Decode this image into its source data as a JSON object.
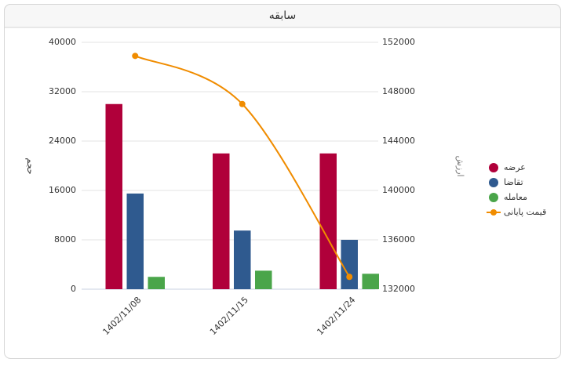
{
  "header": {
    "title": "سابقه"
  },
  "chart_data": {
    "type": "bar",
    "categories": [
      "1402/11/08",
      "1402/11/15",
      "1402/11/24"
    ],
    "y_label": "حجم",
    "y2_label": "ارزش",
    "ylim": [
      0,
      40000
    ],
    "yticks": [
      0,
      8000,
      16000,
      24000,
      32000,
      40000
    ],
    "y2lim": [
      132000,
      152000
    ],
    "y2ticks": [
      132000,
      136000,
      140000,
      144000,
      148000,
      152000
    ],
    "grid": true,
    "series": [
      {
        "name": "عرضه",
        "color": "#b0003a",
        "values": [
          30000,
          22000,
          22000
        ]
      },
      {
        "name": "تقاضا",
        "color": "#2f5a8f",
        "values": [
          15500,
          9500,
          8000
        ]
      },
      {
        "name": "معامله",
        "color": "#4aa54a",
        "values": [
          2000,
          3000,
          2500
        ]
      },
      {
        "name": "قیمت پایانی",
        "type": "line",
        "axis": "y2",
        "color": "#f08c00",
        "values": [
          150900,
          147000,
          133000
        ]
      }
    ]
  }
}
